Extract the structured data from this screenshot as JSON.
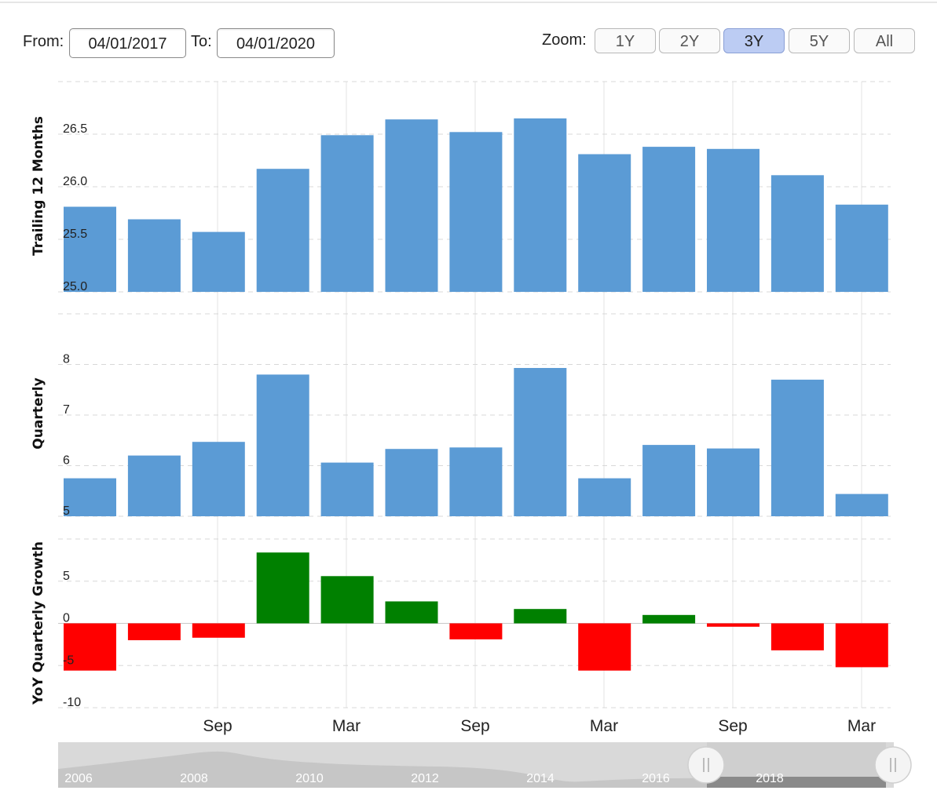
{
  "range": {
    "from_label": "From:",
    "from_value": "04/01/2017",
    "to_label": "To:",
    "to_value": "04/01/2020"
  },
  "zoom": {
    "label": "Zoom:",
    "buttons": [
      "1Y",
      "2Y",
      "3Y",
      "5Y",
      "All"
    ],
    "active": "3Y"
  },
  "colors": {
    "bar": "#5b9bd5",
    "positive": "#008000",
    "negative": "#ff0000"
  },
  "chart_data": [
    {
      "type": "bar",
      "ylabel": "Trailing 12 Months",
      "yticks": [
        "25.0",
        "25.5",
        "26.0",
        "26.5"
      ],
      "ylim": [
        25.0,
        27.0
      ],
      "values": [
        25.81,
        25.69,
        25.57,
        26.17,
        26.49,
        26.64,
        26.52,
        26.65,
        26.31,
        26.38,
        26.36,
        26.11,
        25.83
      ]
    },
    {
      "type": "bar",
      "ylabel": "Quarterly",
      "yticks": [
        "5",
        "6",
        "7",
        "8"
      ],
      "ylim": [
        5.0,
        9.0
      ],
      "values": [
        5.75,
        6.2,
        6.47,
        7.8,
        6.06,
        6.33,
        6.36,
        7.93,
        5.75,
        6.41,
        6.34,
        7.7,
        5.44
      ]
    },
    {
      "type": "bar",
      "ylabel": "YoY Quarterly Growth",
      "yticks": [
        "-10",
        "-5",
        "0",
        "5"
      ],
      "ylim": [
        -10,
        10
      ],
      "values": [
        -5.6,
        -2.0,
        -1.7,
        8.4,
        5.6,
        2.6,
        -1.9,
        1.7,
        -5.6,
        1.0,
        -0.4,
        -3.2,
        -5.2
      ]
    }
  ],
  "x_axis": {
    "ticks": [
      "Sep",
      "Mar",
      "Sep",
      "Mar",
      "Sep",
      "Mar"
    ]
  },
  "navigator": {
    "years": [
      "2006",
      "2008",
      "2010",
      "2012",
      "2014",
      "2016",
      "2018"
    ]
  },
  "icons": {
    "handle": "grip-lines-icon"
  }
}
